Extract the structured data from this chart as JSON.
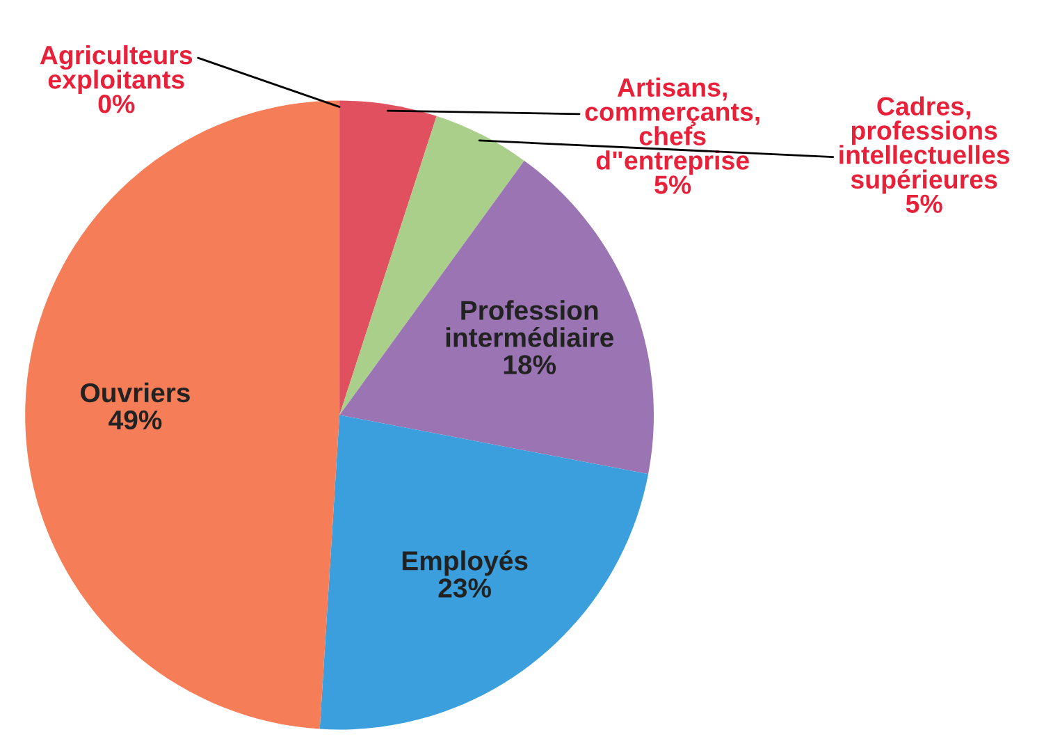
{
  "chart_data": {
    "type": "pie",
    "categories": [
      "Agriculteurs\nexploitants",
      "Artisans,\ncommerçants,\nchefs\nd\"entreprise",
      "Cadres,\nprofessions\nintellectuelles\nsupérieures",
      "Profession\nintermédiaire",
      "Employés",
      "Ouvriers"
    ],
    "values": [
      0,
      5,
      5,
      18,
      23,
      49
    ],
    "colors": [
      "#7fa35a",
      "#e0505e",
      "#a9cf8a",
      "#9b74b3",
      "#3a9fdc",
      "#f57d58"
    ],
    "value_labels": [
      "0%",
      "5%",
      "5%",
      "18%",
      "23%",
      "49%"
    ]
  }
}
